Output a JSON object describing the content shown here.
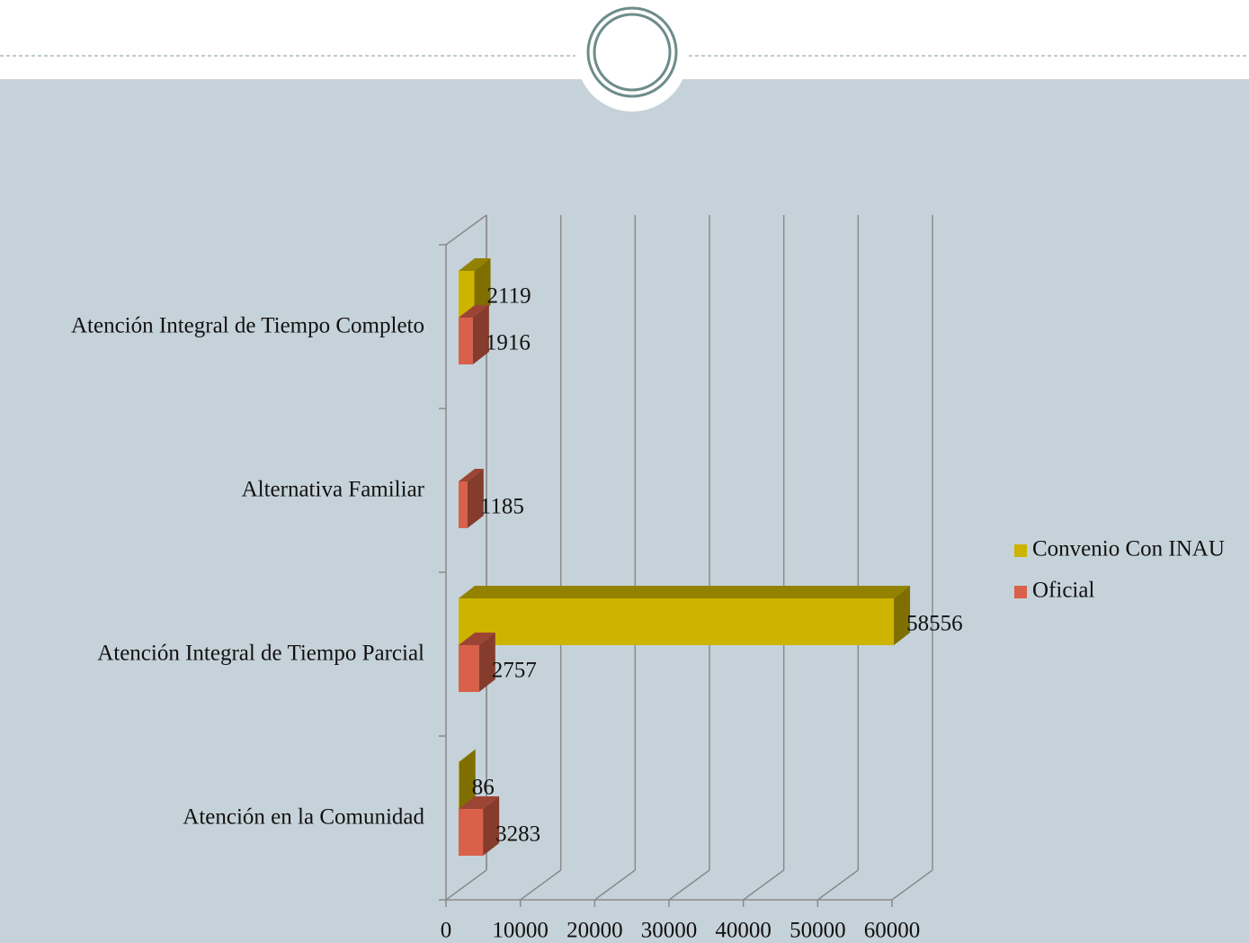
{
  "chart_data": {
    "type": "bar3d",
    "orientation": "horizontal",
    "categories": [
      "Atención Integral de Tiempo Completo",
      "Alternativa Familiar",
      "Atención Integral de Tiempo Parcial",
      "Atención en la Comunidad"
    ],
    "series": [
      {
        "name": "Convenio Con INAU",
        "color": "#cdb400",
        "values": [
          2119,
          null,
          58556,
          86
        ]
      },
      {
        "name": "Oficial",
        "color": "#d9614a",
        "values": [
          1916,
          1185,
          2757,
          3283
        ]
      }
    ],
    "xlim": [
      0,
      60000
    ],
    "xticks": [
      0,
      10000,
      20000,
      30000,
      40000,
      50000,
      60000
    ],
    "grid": true,
    "legend": "right"
  }
}
